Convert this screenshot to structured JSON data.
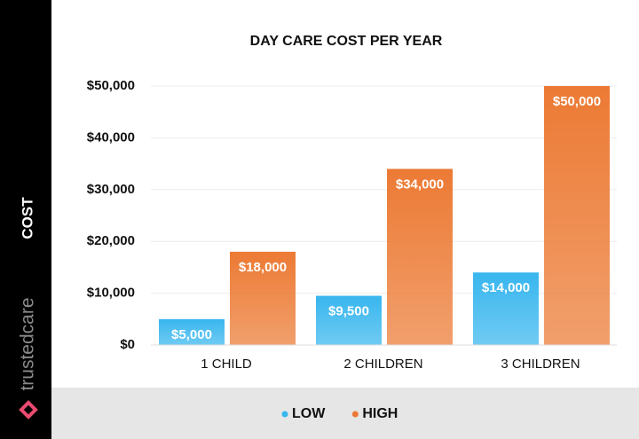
{
  "sidebar": {
    "brand": "trustedcare"
  },
  "chart_data": {
    "type": "bar",
    "title": "DAY CARE COST PER YEAR",
    "ylabel": "COST",
    "categories": [
      "1 CHILD",
      "2 CHILDREN",
      "3 CHILDREN"
    ],
    "series": [
      {
        "name": "LOW",
        "color": "#38b6ee",
        "values": [
          5000,
          9500,
          14000
        ],
        "value_labels": [
          "$5,000",
          "$9,500",
          "$14,000"
        ]
      },
      {
        "name": "HIGH",
        "color": "#ec7a34",
        "values": [
          18000,
          34000,
          50000
        ],
        "value_labels": [
          "$18,000",
          "$34,000",
          "$50,000"
        ]
      }
    ],
    "ylim": [
      0,
      50000
    ],
    "yticks": [
      {
        "value": 0,
        "label": "$0"
      },
      {
        "value": 10000,
        "label": "$10,000"
      },
      {
        "value": 20000,
        "label": "$20,000"
      },
      {
        "value": 30000,
        "label": "$30,000"
      },
      {
        "value": 40000,
        "label": "$40,000"
      },
      {
        "value": 50000,
        "label": "$50,000"
      }
    ],
    "grid": true,
    "legend": "bottom"
  }
}
